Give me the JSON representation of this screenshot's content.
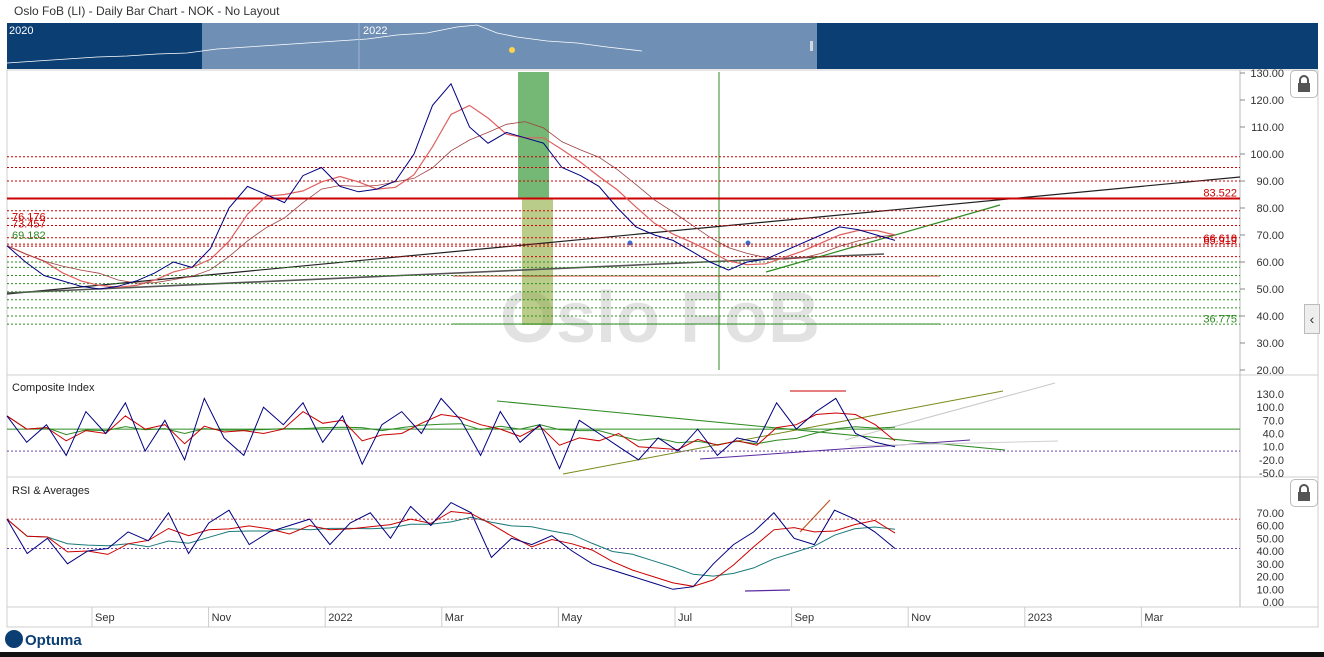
{
  "header": {
    "title": "Oslo FoB (LI) - Daily Bar Chart - NOK - No Layout"
  },
  "navigator": {
    "years": [
      "2020",
      "2022"
    ]
  },
  "watermark": "Oslo FoB",
  "logo": {
    "text": "Optuma"
  },
  "icons": {
    "lock": "lock-icon",
    "collapse": "chevron-left-icon"
  },
  "colors": {
    "navy": "#0b3f74",
    "price": "#000080",
    "red": "#cc0000",
    "green": "#2e8b22",
    "teal": "#1a7a7a"
  },
  "x_axis": {
    "labels": [
      "Sep",
      "Nov",
      "2022",
      "Mar",
      "May",
      "Jul",
      "Sep",
      "Nov",
      "2023",
      "Mar"
    ]
  },
  "chart_data": [
    {
      "type": "line",
      "panel": "price",
      "title": "",
      "ylim": [
        20,
        130
      ],
      "y_ticks": [
        "130.00",
        "120.00",
        "110.00",
        "100.00",
        "90.00",
        "80.00",
        "70.00",
        "60.00",
        "50.00",
        "40.00",
        "30.00",
        "20.00"
      ],
      "annotations": {
        "right": [
          {
            "text": "83.522",
            "color": "#cc0000"
          },
          {
            "text": "66.618",
            "color": "#cc0000"
          },
          {
            "text": "65.919",
            "color": "#cc0000"
          },
          {
            "text": "36.775",
            "color": "#2e8b22"
          }
        ],
        "left": [
          {
            "text": "76.176",
            "color": "#cc0000"
          },
          {
            "text": "73.457",
            "color": "#cc0000"
          },
          {
            "text": "69.182",
            "color": "#2e8b22"
          }
        ]
      },
      "horizontal_levels": [
        99,
        95,
        90,
        83.5,
        79,
        76.2,
        73.5,
        69,
        66.6,
        65.9,
        62,
        60,
        58,
        55,
        52,
        49,
        46,
        43,
        40,
        37
      ],
      "series": [
        {
          "values": [
            66,
            60,
            55,
            53,
            51,
            50,
            51,
            53,
            56,
            60,
            58,
            65,
            80,
            88,
            85,
            82,
            92,
            95,
            88,
            86,
            87,
            90,
            100,
            118,
            126,
            110,
            104,
            108,
            106,
            104,
            95,
            92,
            88,
            80,
            73,
            70,
            68,
            64,
            60,
            57,
            60,
            61,
            64,
            67,
            70,
            73,
            72,
            70,
            68
          ]
        }
      ]
    },
    {
      "type": "line",
      "panel": "indicator",
      "title": "Composite Index",
      "ylim": [
        -50,
        130
      ],
      "y_ticks": [
        "130.0",
        "100.0",
        "70.0",
        "40.0",
        "10.0",
        "-20.0",
        "-50.0"
      ],
      "series": [
        {
          "values": [
            80,
            20,
            60,
            -10,
            90,
            40,
            110,
            0,
            70,
            -20,
            120,
            30,
            -10,
            100,
            60,
            110,
            20,
            80,
            -30,
            60,
            90,
            40,
            120,
            70,
            -10,
            90,
            20,
            60,
            -40,
            70,
            40,
            10,
            -20,
            30,
            0,
            50,
            -10,
            30,
            20,
            110,
            50,
            90,
            120,
            40,
            20,
            10
          ]
        }
      ]
    },
    {
      "type": "line",
      "panel": "indicator",
      "title": "RSI & Averages",
      "ylim": [
        0,
        80
      ],
      "y_ticks": [
        "70.00",
        "60.00",
        "50.00",
        "40.00",
        "30.00",
        "20.00",
        "10.00",
        "0.00"
      ],
      "series": [
        {
          "values": [
            65,
            38,
            50,
            30,
            40,
            42,
            55,
            48,
            70,
            38,
            62,
            72,
            45,
            55,
            60,
            65,
            45,
            62,
            70,
            50,
            75,
            60,
            78,
            70,
            35,
            50,
            45,
            52,
            40,
            30,
            25,
            20,
            15,
            10,
            12,
            30,
            45,
            55,
            70,
            50,
            45,
            72,
            65,
            55,
            42
          ]
        }
      ]
    }
  ]
}
